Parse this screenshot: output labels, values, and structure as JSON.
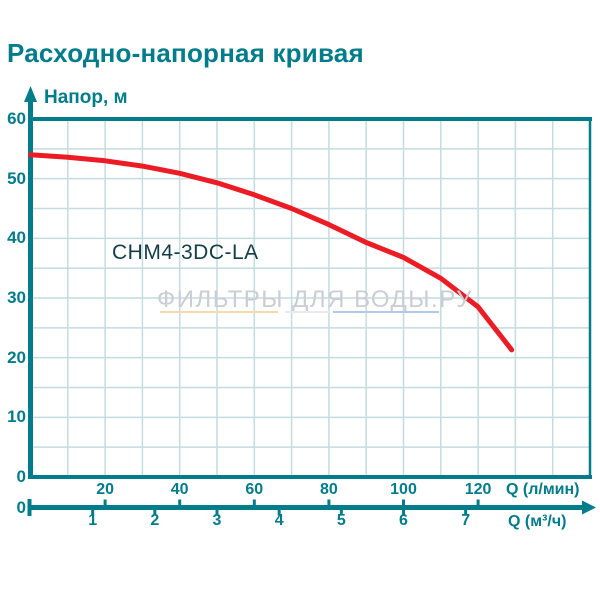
{
  "title": "Расходно-напорная кривая",
  "watermark": {
    "text": "ФИЛЬТРЫ ДЛЯ ВОДЫ.РУ"
  },
  "axis_labels": {
    "y": "Напор, м",
    "x_primary": "Q (л/мин)",
    "x_secondary": "Q (м³/ч)",
    "zero_plot": "0",
    "zero_bar": "0"
  },
  "colors": {
    "teal": "#007C8A",
    "grid": "#C3DCE0",
    "curve_red": "#EC1C24",
    "series_label": "#123D47",
    "watermark_gray": "#C9CED6",
    "underline_peach": "#F6D9AD",
    "underline_gray": "#EAEAEA",
    "underline_blue": "#AFC9E8"
  },
  "chart_data": {
    "type": "line",
    "title": "Расходно-напорная кривая",
    "ylabel": "Напор, м",
    "xlabel_primary": "Q (л/мин)",
    "xlabel_secondary": "Q (м³/ч)",
    "xlim_lmin": [
      0,
      150
    ],
    "ylim": [
      0,
      60
    ],
    "grid": "on",
    "grid_step_x_lmin": 10,
    "grid_step_y_m": 5,
    "y_ticks": [
      0,
      10,
      20,
      30,
      40,
      50,
      60
    ],
    "x_ticks_lmin": [
      20,
      40,
      60,
      80,
      100,
      120
    ],
    "x_ticks_m3h": [
      1,
      2,
      3,
      4,
      5,
      6,
      7
    ],
    "lmin_per_m3h": 16.6667,
    "series": [
      {
        "name": "CHM4-3DC-LA",
        "points_q_lmin_vs_head_m": [
          [
            0,
            54.0
          ],
          [
            10,
            53.6
          ],
          [
            20,
            53.0
          ],
          [
            30,
            52.1
          ],
          [
            40,
            50.9
          ],
          [
            50,
            49.3
          ],
          [
            60,
            47.3
          ],
          [
            70,
            45.0
          ],
          [
            80,
            42.3
          ],
          [
            90,
            39.3
          ],
          [
            100,
            36.8
          ],
          [
            110,
            33.3
          ],
          [
            120,
            28.5
          ],
          [
            129,
            21.3
          ]
        ]
      }
    ]
  }
}
